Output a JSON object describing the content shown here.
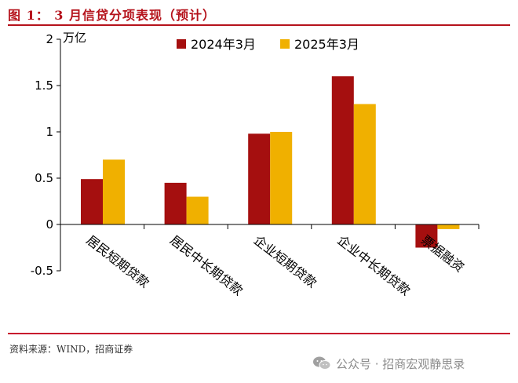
{
  "figure_title": "图 1：  3 月信贷分项表现（预计）",
  "source_note": "资料来源：WIND，招商证券",
  "watermark": {
    "icon": "wechat-icon",
    "text": "公众号 · 招商宏观静思录"
  },
  "colors": {
    "title": "#b5121b",
    "rule": "#c8102e",
    "series_2024": "#a50f0f",
    "series_2025": "#f0b000"
  },
  "chart_data": {
    "type": "bar",
    "ylabel": "万亿",
    "ylim": [
      -0.5,
      2
    ],
    "yticks": [
      -0.5,
      0,
      0.5,
      1,
      1.5,
      2
    ],
    "ytick_labels": [
      "-0.5",
      "0",
      "0.5",
      "1",
      "1.5",
      "2"
    ],
    "categories": [
      "居民短期贷款",
      "居民中长期贷款",
      "企业短期贷款",
      "企业中长期贷款",
      "票据融资"
    ],
    "series": [
      {
        "name": "2024年3月",
        "values": [
          0.49,
          0.45,
          0.98,
          1.6,
          -0.25
        ]
      },
      {
        "name": "2025年3月",
        "values": [
          0.7,
          0.3,
          1.0,
          1.3,
          -0.05
        ]
      }
    ],
    "legend": "top-center",
    "grid": false
  }
}
